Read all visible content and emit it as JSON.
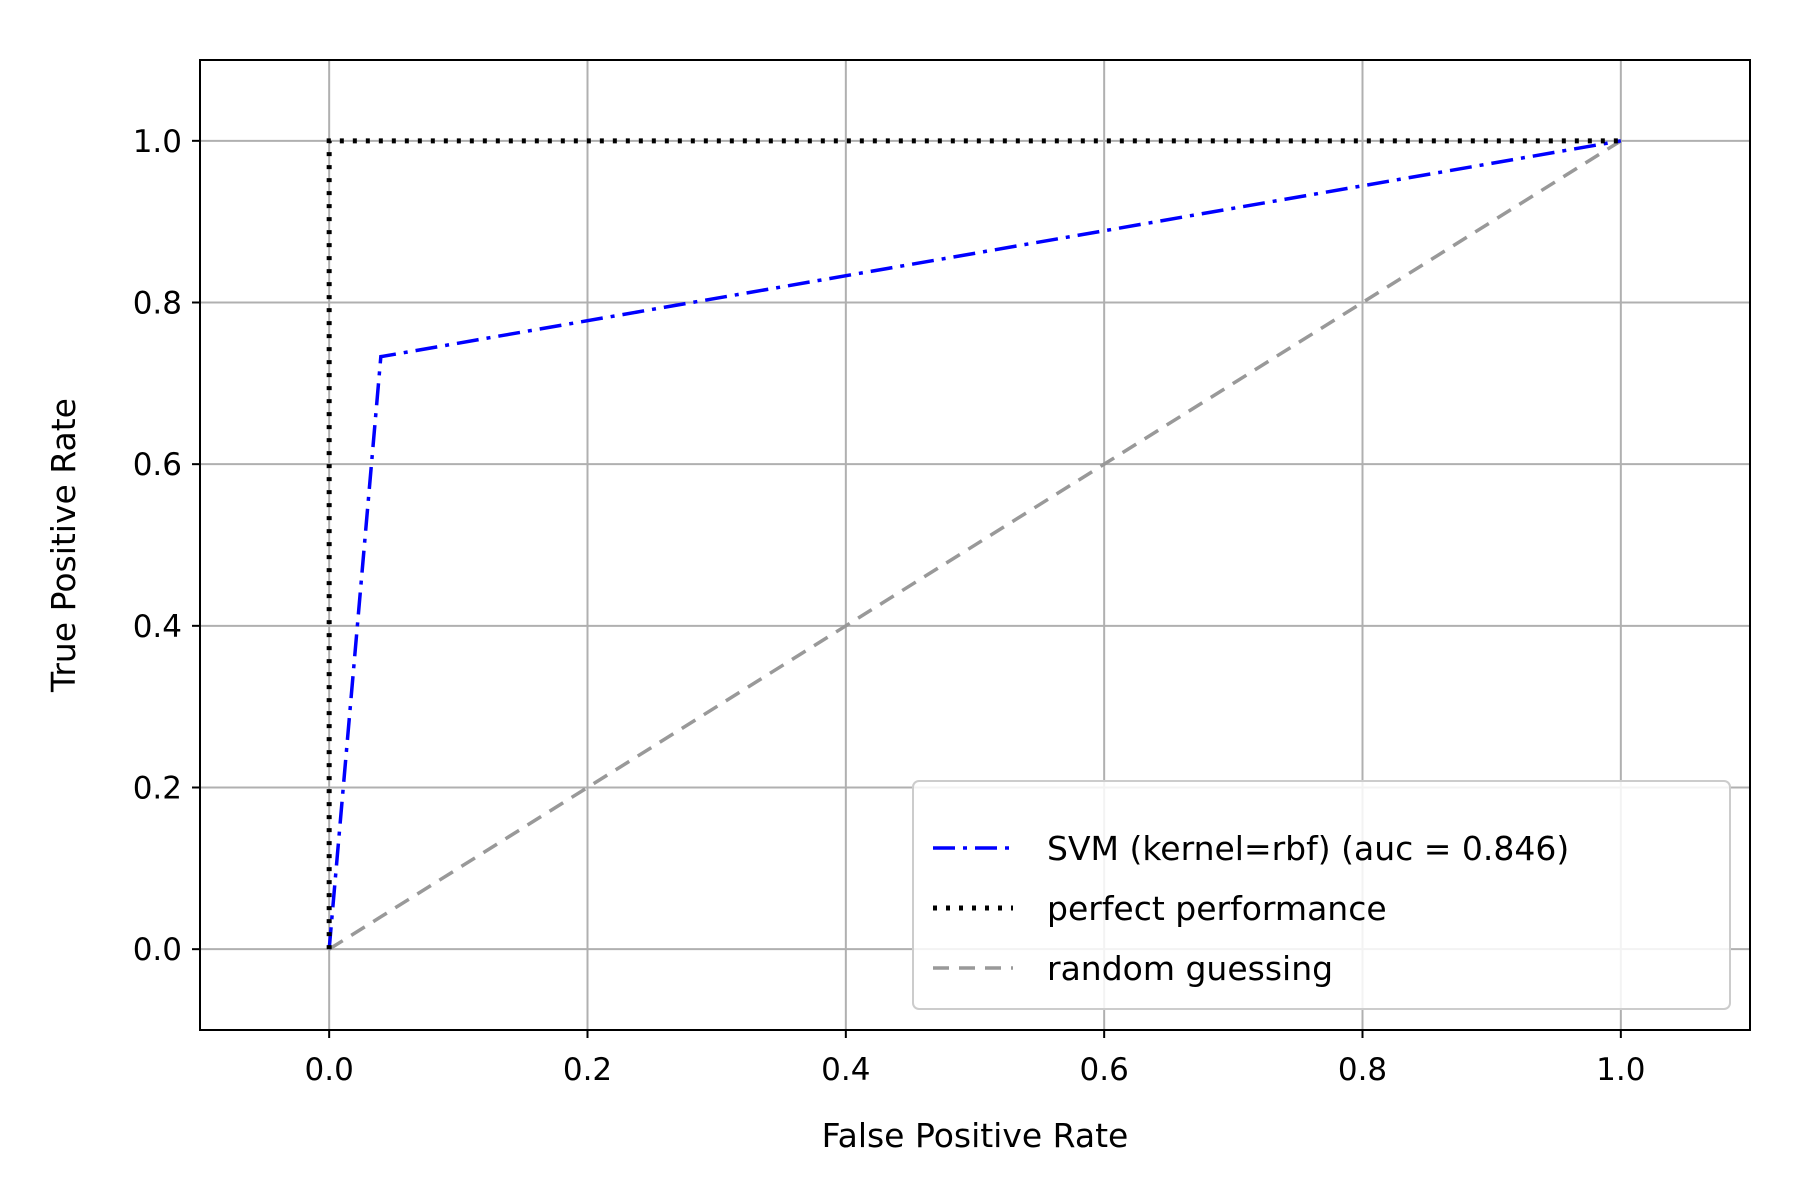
{
  "chart_data": {
    "type": "line",
    "title": "",
    "xlabel": "False Positive Rate",
    "ylabel": "True Positive Rate",
    "xlim": [
      -0.1,
      1.1
    ],
    "ylim": [
      -0.1,
      1.1
    ],
    "xticks": [
      0.0,
      0.2,
      0.4,
      0.6,
      0.8,
      1.0
    ],
    "yticks": [
      0.0,
      0.2,
      0.4,
      0.6,
      0.8,
      1.0
    ],
    "xtick_labels": [
      "0.0",
      "0.2",
      "0.4",
      "0.6",
      "0.8",
      "1.0"
    ],
    "ytick_labels": [
      "0.0",
      "0.2",
      "0.4",
      "0.6",
      "0.8",
      "1.0"
    ],
    "grid": true,
    "legend_position": "bottom-right",
    "series": [
      {
        "name": "SVM (kernel=rbf) (auc = 0.846)",
        "color": "#0000ff",
        "style": "dashdot",
        "x": [
          0.0,
          0.04,
          1.0
        ],
        "y": [
          0.0,
          0.733,
          1.0
        ]
      },
      {
        "name": "perfect performance",
        "color": "#000000",
        "style": "dotted",
        "x": [
          0.0,
          0.0,
          1.0
        ],
        "y": [
          0.0,
          1.0,
          1.0
        ]
      },
      {
        "name": "random guessing",
        "color": "#999999",
        "style": "dashed",
        "x": [
          0.0,
          1.0
        ],
        "y": [
          0.0,
          1.0
        ]
      }
    ]
  }
}
